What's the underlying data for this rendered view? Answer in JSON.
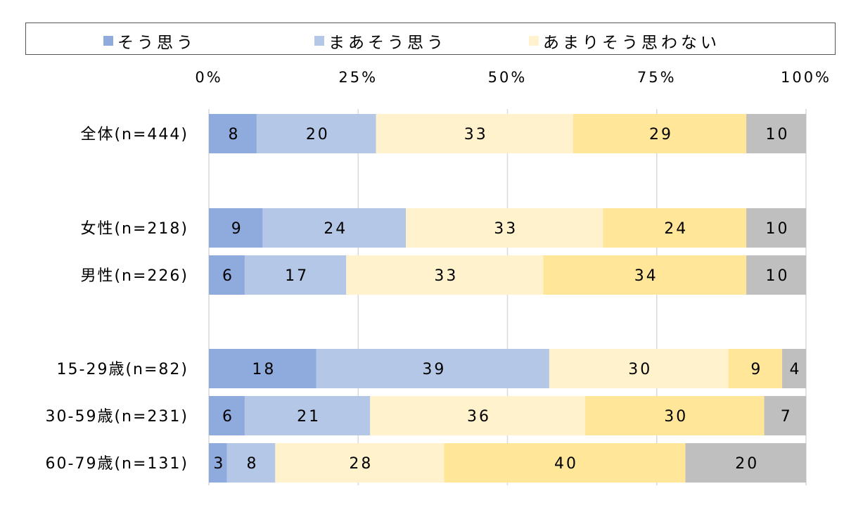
{
  "chart_data": {
    "type": "bar",
    "orientation": "horizontal",
    "stacked": "percent",
    "categories": [
      "全体(n=444)",
      "女性(n=218)",
      "男性(n=226)",
      "15-29歳(n=82)",
      "30-59歳(n=231)",
      "60-79歳(n=131)"
    ],
    "groups": [
      [
        0
      ],
      [
        1,
        2
      ],
      [
        3,
        4,
        5
      ]
    ],
    "series": [
      {
        "name": "そう思う",
        "color": "#8faadc",
        "values": [
          8,
          9,
          6,
          18,
          6,
          3
        ]
      },
      {
        "name": "まあそう思う",
        "color": "#b4c7e7",
        "values": [
          20,
          24,
          17,
          39,
          21,
          8
        ]
      },
      {
        "name": "あまりそう思わない",
        "color": "#fff2cc",
        "values": [
          33,
          33,
          33,
          30,
          36,
          28
        ]
      },
      {
        "color": "#ffe699",
        "values": [
          29,
          24,
          34,
          9,
          30,
          40
        ]
      },
      {
        "color": "#bfbfbf",
        "values": [
          10,
          10,
          10,
          4,
          7,
          20
        ]
      }
    ],
    "xlim": [
      0,
      100
    ],
    "xticks": [
      "0%",
      "25%",
      "50%",
      "75%",
      "100%"
    ],
    "grid": true,
    "legend": "top"
  }
}
